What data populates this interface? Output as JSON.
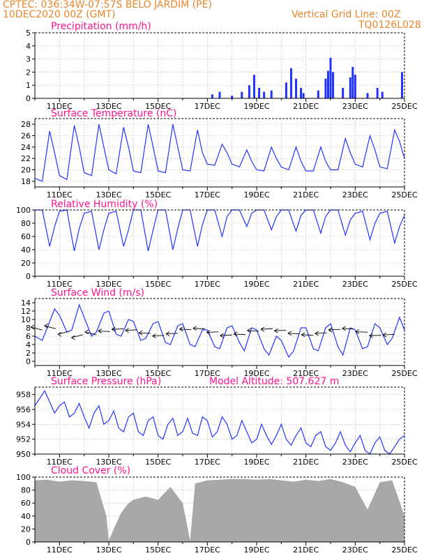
{
  "header": {
    "station_line": "CPTEC:   036:34W-07:57S   BELO JARDIM (PE)",
    "datetime": "10DEC2020 00Z (GMT)",
    "grid_note": "Vertical Grid Line: 00Z",
    "run_code": "TQ0126L028"
  },
  "colors": {
    "header": "#e8862a",
    "title": "#ff1493",
    "line": "#2233ff",
    "cloud": "#a8a8a8",
    "grid": "#9a9a9a"
  },
  "x_axis": {
    "start": "10DEC2020 00Z",
    "end": "25DEC2020 00Z",
    "ticks": [
      "11DEC",
      "13DEC",
      "15DEC",
      "17DEC",
      "19DEC",
      "21DEC",
      "23DEC",
      "25DEC"
    ],
    "tick_days": [
      1,
      3,
      5,
      7,
      9,
      11,
      13,
      15
    ],
    "grid": "daily at 00Z"
  },
  "chart_data": [
    {
      "id": "precip",
      "type": "bar",
      "title": "Precipitation (mm/h)",
      "ylim": [
        0,
        5
      ],
      "yticks": [
        0,
        1,
        2,
        3,
        4,
        5
      ],
      "x_days": [
        7.2,
        7.5,
        8.0,
        8.4,
        8.7,
        8.9,
        9.1,
        9.3,
        9.6,
        10.2,
        10.4,
        10.6,
        10.8,
        10.9,
        11.5,
        11.8,
        11.9,
        12.0,
        12.1,
        12.5,
        12.8,
        12.9,
        13.0,
        13.5,
        13.9,
        14.1,
        14.9
      ],
      "values": [
        0.3,
        0.5,
        0.2,
        0.5,
        1.0,
        1.8,
        0.8,
        0.5,
        0.6,
        1.2,
        2.3,
        1.5,
        0.8,
        0.4,
        0.6,
        1.5,
        2.1,
        3.1,
        2.0,
        0.8,
        1.6,
        2.4,
        1.8,
        0.4,
        0.8,
        0.5,
        2.0
      ]
    },
    {
      "id": "temp",
      "type": "line",
      "title": "Surface Temperature (nC)",
      "ylim": [
        17,
        29
      ],
      "yticks": [
        18,
        20,
        22,
        24,
        26,
        28
      ],
      "series": [
        {
          "x": [
            0,
            0.3,
            0.6,
            0.8,
            1.0,
            1.3,
            1.6,
            1.8,
            2.0,
            2.3,
            2.6,
            2.8,
            3.0,
            3.3,
            3.6,
            3.8,
            4.0,
            4.3,
            4.6,
            4.8,
            5.0,
            5.3,
            5.6,
            5.8,
            6.0,
            6.3,
            6.6,
            6.8,
            7.0,
            7.3,
            7.6,
            7.8,
            8.0,
            8.3,
            8.6,
            8.8,
            9.0,
            9.3,
            9.6,
            9.8,
            10.0,
            10.3,
            10.6,
            10.8,
            11.0,
            11.3,
            11.6,
            11.8,
            12.0,
            12.3,
            12.6,
            12.8,
            13.0,
            13.3,
            13.6,
            13.8,
            14.0,
            14.3,
            14.6,
            14.8,
            15.0
          ],
          "y": [
            18.5,
            18.0,
            26.8,
            23.0,
            19.0,
            18.3,
            27.8,
            24.0,
            19.5,
            19.0,
            28.0,
            24.0,
            20.0,
            19.3,
            27.5,
            24.0,
            19.8,
            19.5,
            28.0,
            24.0,
            19.8,
            19.5,
            28.0,
            24.0,
            20.0,
            19.8,
            27.0,
            23.0,
            21.0,
            20.8,
            24.5,
            23.0,
            21.0,
            20.5,
            23.5,
            21.5,
            20.0,
            19.8,
            24.0,
            22.0,
            20.5,
            20.0,
            24.0,
            21.5,
            19.8,
            19.8,
            24.0,
            21.5,
            20.0,
            20.0,
            25.5,
            23.0,
            21.0,
            20.5,
            26.0,
            23.5,
            20.5,
            20.2,
            27.0,
            25.0,
            22.0
          ]
        }
      ]
    },
    {
      "id": "rh",
      "type": "line",
      "title": "Relative Humidity (%)",
      "ylim": [
        0,
        100
      ],
      "yticks": [
        0,
        20,
        40,
        60,
        80,
        100
      ],
      "series": [
        {
          "x": [
            0,
            0.3,
            0.6,
            0.8,
            1.0,
            1.3,
            1.6,
            1.8,
            2.0,
            2.3,
            2.6,
            2.8,
            3.0,
            3.3,
            3.6,
            3.8,
            4.0,
            4.3,
            4.6,
            4.8,
            5.0,
            5.3,
            5.6,
            5.8,
            6.0,
            6.3,
            6.6,
            6.8,
            7.0,
            7.3,
            7.6,
            7.8,
            8.0,
            8.3,
            8.6,
            8.8,
            9.0,
            9.3,
            9.6,
            9.8,
            10.0,
            10.3,
            10.6,
            10.8,
            11.0,
            11.3,
            11.6,
            11.8,
            12.0,
            12.3,
            12.6,
            12.8,
            13.0,
            13.3,
            13.6,
            13.8,
            14.0,
            14.3,
            14.6,
            14.8,
            15.0
          ],
          "y": [
            100,
            100,
            45,
            75,
            98,
            100,
            38,
            72,
            95,
            98,
            40,
            70,
            95,
            98,
            45,
            70,
            100,
            100,
            38,
            70,
            100,
            100,
            40,
            72,
            100,
            100,
            45,
            78,
            100,
            100,
            60,
            90,
            100,
            100,
            75,
            95,
            100,
            100,
            70,
            90,
            100,
            100,
            68,
            92,
            100,
            100,
            65,
            90,
            100,
            100,
            62,
            85,
            95,
            98,
            55,
            80,
            95,
            98,
            50,
            75,
            92
          ]
        }
      ]
    },
    {
      "id": "wind",
      "type": "line",
      "title": "Surface Wind (m/s)",
      "ylim": [
        -1,
        15
      ],
      "yticks": [
        0,
        2,
        4,
        6,
        8,
        10,
        12,
        14
      ],
      "series": [
        {
          "x": [
            0,
            0.3,
            0.5,
            0.8,
            1.0,
            1.3,
            1.5,
            1.8,
            2.0,
            2.3,
            2.5,
            2.8,
            3.0,
            3.3,
            3.5,
            3.8,
            4.0,
            4.3,
            4.5,
            4.8,
            5.0,
            5.3,
            5.5,
            5.8,
            6.0,
            6.3,
            6.5,
            6.8,
            7.0,
            7.3,
            7.5,
            7.8,
            8.0,
            8.3,
            8.5,
            8.8,
            9.0,
            9.3,
            9.5,
            9.8,
            10.0,
            10.3,
            10.5,
            10.8,
            11.0,
            11.3,
            11.5,
            11.8,
            12.0,
            12.3,
            12.5,
            12.8,
            13.0,
            13.3,
            13.5,
            13.8,
            14.0,
            14.3,
            14.5,
            14.8,
            15.0
          ],
          "y": [
            6.0,
            5.0,
            8.0,
            12.5,
            11.0,
            7.0,
            7.5,
            13.5,
            10.5,
            6.0,
            7.0,
            11.5,
            12.0,
            6.5,
            6.0,
            10.0,
            9.5,
            5.0,
            5.5,
            9.0,
            9.5,
            4.5,
            4.0,
            8.5,
            9.0,
            4.0,
            3.5,
            7.5,
            7.5,
            3.5,
            3.0,
            8.0,
            8.5,
            4.5,
            2.5,
            8.0,
            7.5,
            3.0,
            1.5,
            6.0,
            5.0,
            1.0,
            2.5,
            8.0,
            8.0,
            3.0,
            2.5,
            8.0,
            9.0,
            3.5,
            1.5,
            8.0,
            7.5,
            3.0,
            3.5,
            9.0,
            8.0,
            4.0,
            5.5,
            10.5,
            7.5
          ]
        }
      ],
      "arrows_note": "wind direction vectors along y=7"
    },
    {
      "id": "pres",
      "type": "line",
      "title": "Surface Pressure (hPa)",
      "annotation": "Model Altitude: 507.627 m",
      "ylim": [
        950,
        959
      ],
      "yticks": [
        950,
        952,
        954,
        956,
        958
      ],
      "series": [
        {
          "x": [
            0,
            0.2,
            0.4,
            0.6,
            0.8,
            1.0,
            1.2,
            1.4,
            1.6,
            1.8,
            2.0,
            2.2,
            2.4,
            2.6,
            2.8,
            3.0,
            3.2,
            3.4,
            3.6,
            3.8,
            4.0,
            4.2,
            4.4,
            4.6,
            4.8,
            5.0,
            5.2,
            5.4,
            5.6,
            5.8,
            6.0,
            6.2,
            6.4,
            6.6,
            6.8,
            7.0,
            7.2,
            7.4,
            7.6,
            7.8,
            8.0,
            8.2,
            8.4,
            8.6,
            8.8,
            9.0,
            9.2,
            9.4,
            9.6,
            9.8,
            10.0,
            10.2,
            10.4,
            10.6,
            10.8,
            11.0,
            11.2,
            11.4,
            11.6,
            11.8,
            12.0,
            12.2,
            12.4,
            12.6,
            12.8,
            13.0,
            13.2,
            13.4,
            13.6,
            13.8,
            14.0,
            14.2,
            14.4,
            14.6,
            14.8,
            15.0
          ],
          "y": [
            956.5,
            957.5,
            958.5,
            957.0,
            955.5,
            956.5,
            957.0,
            955.0,
            955.5,
            956.8,
            955.0,
            953.5,
            955.5,
            956.5,
            954.0,
            954.5,
            955.8,
            953.5,
            953.0,
            955.0,
            955.5,
            953.0,
            952.5,
            954.5,
            955.0,
            952.5,
            952.0,
            954.0,
            954.8,
            952.5,
            953.0,
            954.8,
            952.8,
            952.5,
            955.0,
            954.5,
            952.3,
            953.0,
            955.0,
            954.0,
            952.0,
            952.5,
            954.5,
            953.0,
            951.5,
            952.0,
            954.0,
            952.5,
            951.3,
            952.5,
            954.0,
            952.0,
            951.2,
            952.5,
            953.5,
            951.5,
            951.0,
            952.5,
            953.0,
            951.0,
            950.5,
            951.5,
            953.0,
            951.2,
            950.3,
            951.5,
            952.5,
            950.5,
            950.0,
            951.5,
            952.3,
            950.5,
            950.0,
            951.0,
            952.0,
            952.5
          ]
        }
      ]
    },
    {
      "id": "cloud",
      "type": "area",
      "title": "Cloud Cover (%)",
      "ylim": [
        0,
        100
      ],
      "yticks": [
        0,
        20,
        40,
        60,
        80,
        100
      ],
      "series": [
        {
          "x": [
            0,
            0.5,
            1.0,
            1.5,
            2.0,
            2.5,
            2.9,
            3.0,
            3.2,
            3.5,
            3.8,
            4.0,
            4.5,
            5.0,
            5.5,
            6.0,
            6.3,
            6.5,
            7.0,
            7.5,
            8.0,
            8.5,
            9.0,
            9.5,
            10.0,
            10.5,
            11.0,
            11.5,
            12.0,
            12.5,
            13.0,
            13.5,
            14.0,
            14.5,
            15.0
          ],
          "y": [
            95,
            96,
            93,
            95,
            94,
            92,
            40,
            2,
            20,
            45,
            60,
            65,
            70,
            65,
            85,
            60,
            2,
            90,
            95,
            96,
            97,
            97,
            96,
            97,
            95,
            93,
            96,
            94,
            97,
            92,
            85,
            50,
            92,
            95,
            40
          ]
        }
      ]
    }
  ]
}
